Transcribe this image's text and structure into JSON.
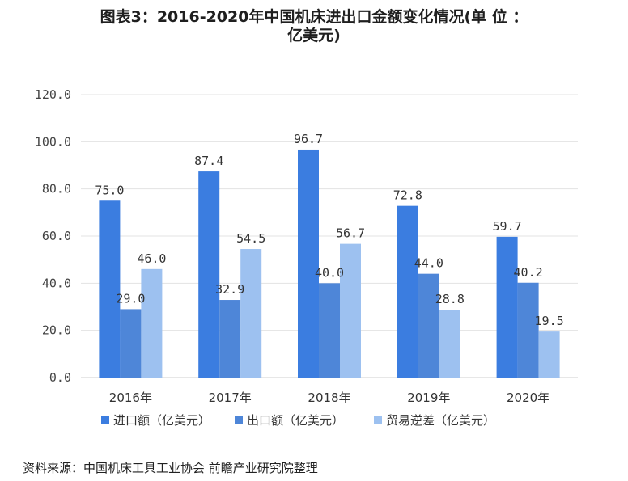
{
  "title": {
    "line1": "图表3：2016-2020年中国机床进出口金额变化情况(单 位 ：",
    "line2": "亿美元)"
  },
  "chart_data": {
    "type": "bar",
    "categories": [
      "2016年",
      "2017年",
      "2018年",
      "2019年",
      "2020年"
    ],
    "series": [
      {
        "name": "进口额（亿美元）",
        "color": "#3b7de0",
        "values": [
          75.0,
          87.4,
          96.7,
          72.8,
          59.7
        ]
      },
      {
        "name": "出口额（亿美元）",
        "color": "#4e86d8",
        "values": [
          29.0,
          32.9,
          40.0,
          44.0,
          40.2
        ]
      },
      {
        "name": "贸易逆差（亿美元）",
        "color": "#9dc1f0",
        "values": [
          46.0,
          54.5,
          56.7,
          28.8,
          19.5
        ]
      }
    ],
    "y_ticks": [
      "0.0",
      "20.0",
      "40.0",
      "60.0",
      "80.0",
      "100.0",
      "120.0"
    ],
    "ylim": [
      0,
      120
    ],
    "grid": true,
    "legend_position": "bottom"
  },
  "source": "资料来源：中国机床工具工业协会 前瞻产业研究院整理"
}
